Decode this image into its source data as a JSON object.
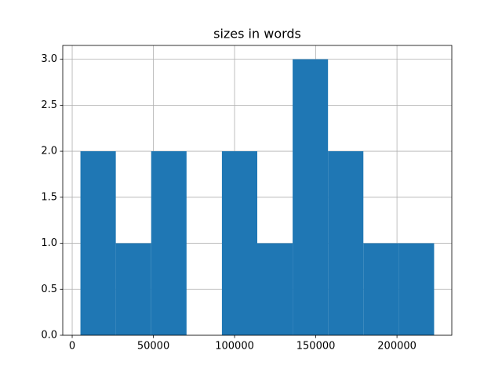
{
  "chart_data": {
    "type": "histogram",
    "title": "sizes in words",
    "bins": [
      5080,
      26859,
      48638,
      70417,
      92196,
      113975,
      135754,
      157533,
      179312,
      201091,
      222870
    ],
    "values": [
      2,
      1,
      2,
      0,
      2,
      1,
      3,
      2,
      1,
      1
    ],
    "color": "#1f77b4",
    "xlim": [
      -5810,
      233760
    ],
    "xticks": [
      0,
      50000,
      100000,
      150000,
      200000
    ],
    "ylim": [
      0,
      3.15
    ],
    "yticks": [
      {
        "value": 0,
        "label": "0.0"
      },
      {
        "value": 0.5,
        "label": "0.5"
      },
      {
        "value": 1,
        "label": "1.0"
      },
      {
        "value": 1.5,
        "label": "1.5"
      },
      {
        "value": 2,
        "label": "2.0"
      },
      {
        "value": 2.5,
        "label": "2.5"
      },
      {
        "value": 3,
        "label": "3.0"
      }
    ],
    "grid": true
  }
}
